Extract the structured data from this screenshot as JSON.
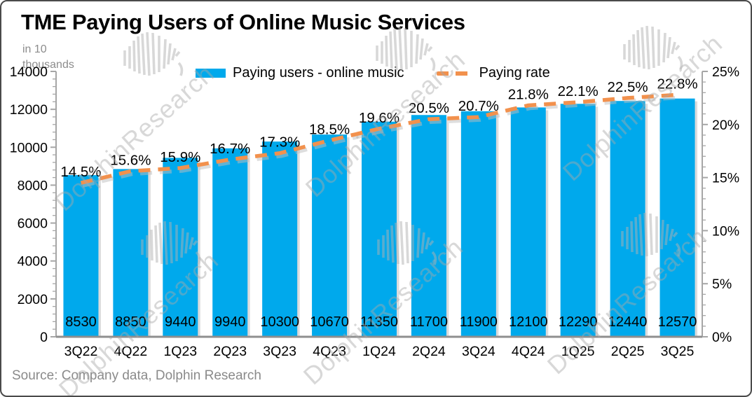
{
  "header": {
    "title": "TME Paying Users of Online Music Services",
    "unit_note": "in 10 thousands"
  },
  "legend": {
    "bar_label": "Paying users - online music",
    "line_label": "Paying rate"
  },
  "footer": {
    "source": "Source: Company data, Dolphin Research"
  },
  "watermark": {
    "text": "DolphinResearch"
  },
  "chart_data": {
    "type": "bar",
    "title": "TME Paying Users of Online Music Services",
    "unit_note": "in 10 thousands",
    "categories": [
      "3Q22",
      "4Q22",
      "1Q23",
      "2Q23",
      "3Q23",
      "4Q23",
      "1Q24",
      "2Q24",
      "3Q24",
      "4Q24",
      "1Q25",
      "2Q25",
      "3Q25"
    ],
    "series": [
      {
        "name": "Paying users - online music",
        "type": "bar",
        "axis": "left",
        "color": "#00A9EC",
        "shadow_color": "#C6C6C6",
        "values": [
          8530,
          8850,
          9440,
          9940,
          10300,
          10670,
          11350,
          11700,
          11900,
          12100,
          12290,
          12440,
          12570
        ]
      },
      {
        "name": "Paying rate",
        "type": "line",
        "style": "dashed",
        "axis": "right",
        "color": "#F2914D",
        "shadow_color": "#BDBDBD",
        "suffix": "%",
        "values": [
          14.5,
          15.6,
          15.9,
          16.7,
          17.3,
          18.5,
          19.6,
          20.5,
          20.7,
          21.8,
          22.1,
          22.5,
          22.8
        ]
      }
    ],
    "left_axis": {
      "min": 0,
      "max": 14000,
      "major_step": 2000,
      "minor_step": 400
    },
    "right_axis": {
      "min": 0,
      "max": 25,
      "major_step": 5,
      "minor_step": 1,
      "suffix": "%"
    },
    "axis_color": "#A6A6A6",
    "baseline_color": "#8F8F8F",
    "label_color": "#000000",
    "grid": false,
    "legend_position": "top-center",
    "source": "Source: Company data, Dolphin Research"
  }
}
